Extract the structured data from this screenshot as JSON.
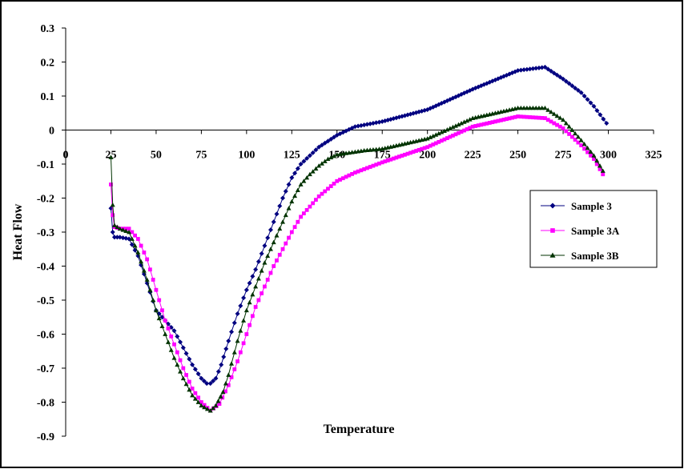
{
  "chart_data": {
    "type": "scatter",
    "title": "",
    "xlabel": "Temperature",
    "ylabel": "Heat Flow",
    "xlim": [
      0,
      325
    ],
    "ylim": [
      -0.9,
      0.3
    ],
    "x_ticks": [
      "0",
      "25",
      "50",
      "75",
      "100",
      "125",
      "150",
      "175",
      "200",
      "225",
      "250",
      "275",
      "300",
      "325"
    ],
    "y_ticks": [
      "0.3",
      "0.2",
      "0.1",
      "0",
      "-0.1",
      "-0.2",
      "-0.3",
      "-0.4",
      "-0.5",
      "-0.6",
      "-0.7",
      "-0.8",
      "-0.9"
    ],
    "grid": false,
    "legend_position": "right",
    "series": [
      {
        "name": "Sample 3",
        "color": "#000080",
        "marker": "diamond",
        "points": [
          [
            25,
            -0.23
          ],
          [
            26,
            -0.3
          ],
          [
            27,
            -0.315
          ],
          [
            30,
            -0.315
          ],
          [
            35,
            -0.32
          ],
          [
            40,
            -0.37
          ],
          [
            45,
            -0.45
          ],
          [
            50,
            -0.53
          ],
          [
            55,
            -0.56
          ],
          [
            60,
            -0.59
          ],
          [
            65,
            -0.64
          ],
          [
            70,
            -0.69
          ],
          [
            75,
            -0.73
          ],
          [
            78,
            -0.745
          ],
          [
            80,
            -0.745
          ],
          [
            83,
            -0.73
          ],
          [
            86,
            -0.69
          ],
          [
            90,
            -0.62
          ],
          [
            95,
            -0.54
          ],
          [
            100,
            -0.47
          ],
          [
            105,
            -0.41
          ],
          [
            110,
            -0.34
          ],
          [
            115,
            -0.27
          ],
          [
            120,
            -0.2
          ],
          [
            125,
            -0.14
          ],
          [
            130,
            -0.1
          ],
          [
            140,
            -0.05
          ],
          [
            150,
            -0.015
          ],
          [
            160,
            0.01
          ],
          [
            175,
            0.025
          ],
          [
            200,
            0.06
          ],
          [
            225,
            0.12
          ],
          [
            250,
            0.175
          ],
          [
            265,
            0.185
          ],
          [
            275,
            0.15
          ],
          [
            285,
            0.11
          ],
          [
            292,
            0.07
          ],
          [
            299,
            0.02
          ]
        ]
      },
      {
        "name": "Sample 3A",
        "color": "#ff00ff",
        "marker": "square",
        "points": [
          [
            25,
            -0.16
          ],
          [
            26,
            -0.25
          ],
          [
            27,
            -0.285
          ],
          [
            30,
            -0.29
          ],
          [
            35,
            -0.29
          ],
          [
            40,
            -0.32
          ],
          [
            45,
            -0.38
          ],
          [
            50,
            -0.47
          ],
          [
            55,
            -0.56
          ],
          [
            60,
            -0.63
          ],
          [
            65,
            -0.7
          ],
          [
            70,
            -0.76
          ],
          [
            75,
            -0.8
          ],
          [
            80,
            -0.825
          ],
          [
            85,
            -0.805
          ],
          [
            90,
            -0.75
          ],
          [
            95,
            -0.68
          ],
          [
            100,
            -0.6
          ],
          [
            105,
            -0.52
          ],
          [
            110,
            -0.46
          ],
          [
            115,
            -0.4
          ],
          [
            120,
            -0.35
          ],
          [
            125,
            -0.3
          ],
          [
            130,
            -0.255
          ],
          [
            135,
            -0.225
          ],
          [
            140,
            -0.195
          ],
          [
            150,
            -0.15
          ],
          [
            160,
            -0.125
          ],
          [
            175,
            -0.095
          ],
          [
            200,
            -0.05
          ],
          [
            225,
            0.01
          ],
          [
            250,
            0.04
          ],
          [
            265,
            0.035
          ],
          [
            275,
            0.005
          ],
          [
            285,
            -0.045
          ],
          [
            292,
            -0.085
          ],
          [
            297,
            -0.13
          ]
        ]
      },
      {
        "name": "Sample 3B",
        "color": "#003300",
        "marker": "triangle",
        "points": [
          [
            25,
            -0.08
          ],
          [
            26,
            -0.22
          ],
          [
            27,
            -0.28
          ],
          [
            30,
            -0.29
          ],
          [
            35,
            -0.3
          ],
          [
            40,
            -0.36
          ],
          [
            45,
            -0.44
          ],
          [
            50,
            -0.53
          ],
          [
            55,
            -0.6
          ],
          [
            60,
            -0.67
          ],
          [
            65,
            -0.73
          ],
          [
            70,
            -0.78
          ],
          [
            75,
            -0.81
          ],
          [
            80,
            -0.825
          ],
          [
            83,
            -0.81
          ],
          [
            87,
            -0.77
          ],
          [
            90,
            -0.72
          ],
          [
            95,
            -0.62
          ],
          [
            100,
            -0.53
          ],
          [
            105,
            -0.46
          ],
          [
            110,
            -0.39
          ],
          [
            115,
            -0.33
          ],
          [
            120,
            -0.27
          ],
          [
            125,
            -0.21
          ],
          [
            130,
            -0.16
          ],
          [
            135,
            -0.13
          ],
          [
            140,
            -0.105
          ],
          [
            145,
            -0.085
          ],
          [
            150,
            -0.072
          ],
          [
            165,
            -0.06
          ],
          [
            175,
            -0.055
          ],
          [
            200,
            -0.025
          ],
          [
            225,
            0.035
          ],
          [
            250,
            0.065
          ],
          [
            265,
            0.065
          ],
          [
            275,
            0.03
          ],
          [
            285,
            -0.03
          ],
          [
            292,
            -0.075
          ],
          [
            297,
            -0.12
          ]
        ]
      }
    ]
  }
}
